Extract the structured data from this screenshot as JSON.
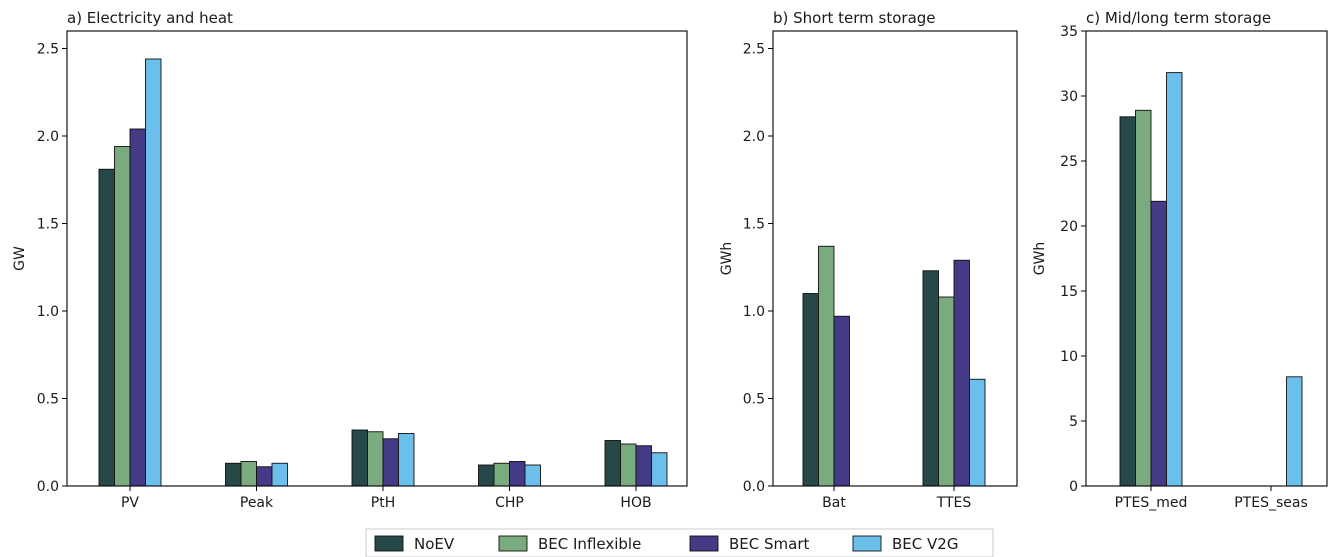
{
  "legend": {
    "placement": "bottom-center",
    "entries": [
      {
        "name": "NoEV",
        "color": "#264848"
      },
      {
        "name": "BEC Inflexible",
        "color": "#7aab7f"
      },
      {
        "name": "BEC Smart",
        "color": "#443a86"
      },
      {
        "name": "BEC V2G",
        "color": "#6ac0ea"
      }
    ]
  },
  "chart_data": [
    {
      "type": "bar",
      "title": "a) Electricity and heat",
      "ylabel": "GW",
      "xlabel": "",
      "ylim": [
        0,
        2.6
      ],
      "yticks": [
        "0.0",
        "0.5",
        "1.0",
        "1.5",
        "2.0",
        "2.5"
      ],
      "categories": [
        "PV",
        "Peak",
        "PtH",
        "CHP",
        "HOB"
      ],
      "series": [
        {
          "name": "NoEV",
          "values": [
            1.81,
            0.13,
            0.32,
            0.12,
            0.26
          ]
        },
        {
          "name": "BEC Inflexible",
          "values": [
            1.94,
            0.14,
            0.31,
            0.13,
            0.24
          ]
        },
        {
          "name": "BEC Smart",
          "values": [
            2.04,
            0.11,
            0.27,
            0.14,
            0.23
          ]
        },
        {
          "name": "BEC V2G",
          "values": [
            2.44,
            0.13,
            0.3,
            0.12,
            0.19
          ]
        }
      ]
    },
    {
      "type": "bar",
      "title": "b) Short term storage",
      "ylabel": "GWh",
      "xlabel": "",
      "ylim": [
        0,
        2.6
      ],
      "yticks": [
        "0.0",
        "0.5",
        "1.0",
        "1.5",
        "2.0",
        "2.5"
      ],
      "categories": [
        "Bat",
        "TTES"
      ],
      "series": [
        {
          "name": "NoEV",
          "values": [
            1.1,
            1.23
          ]
        },
        {
          "name": "BEC Inflexible",
          "values": [
            1.37,
            1.08
          ]
        },
        {
          "name": "BEC Smart",
          "values": [
            0.97,
            1.29
          ]
        },
        {
          "name": "BEC V2G",
          "values": [
            0.0,
            0.61
          ]
        }
      ]
    },
    {
      "type": "bar",
      "title": "c) Mid/long term storage",
      "ylabel": "GWh",
      "xlabel": "",
      "ylim": [
        0,
        35
      ],
      "yticks": [
        "0",
        "5",
        "10",
        "15",
        "20",
        "25",
        "30",
        "35"
      ],
      "categories": [
        "PTES_med",
        "PTES_seas"
      ],
      "series": [
        {
          "name": "NoEV",
          "values": [
            28.4,
            0.0
          ]
        },
        {
          "name": "BEC Inflexible",
          "values": [
            28.9,
            0.0
          ]
        },
        {
          "name": "BEC Smart",
          "values": [
            21.9,
            0.0
          ]
        },
        {
          "name": "BEC V2G",
          "values": [
            31.8,
            8.4
          ]
        }
      ]
    }
  ]
}
